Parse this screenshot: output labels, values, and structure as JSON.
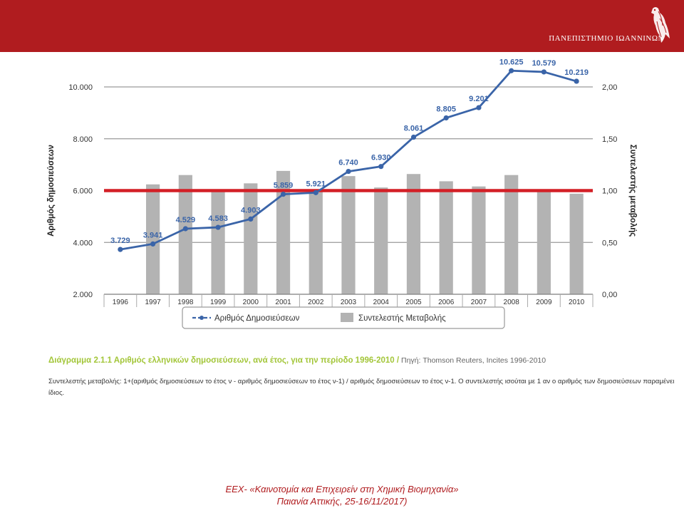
{
  "header": {
    "university": "ΠΑΝΕΠΙΣΤΗΜΙΟ ΙΩΑΝΝΙΝΩΝ",
    "logo_icon": "eagle-emblem-icon",
    "colors": {
      "band": "#b01c1f",
      "text": "#ffffff"
    }
  },
  "chart_data": {
    "type": "bar+line",
    "categories": [
      "1996",
      "1997",
      "1998",
      "1999",
      "2000",
      "2001",
      "2002",
      "2003",
      "2004",
      "2005",
      "2006",
      "2007",
      "2008",
      "2009",
      "2010"
    ],
    "series": [
      {
        "name": "Αριθμός Δημοσιεύσεων",
        "type": "line",
        "axis": "left",
        "color": "#3a64a8",
        "values": [
          3729,
          3941,
          4529,
          4583,
          4903,
          5859,
          5921,
          6740,
          6930,
          8061,
          8805,
          9201,
          10625,
          10579,
          10219
        ],
        "labels": [
          "3.729",
          "3.941",
          "4.529",
          "4.583",
          "4.903",
          "5.859",
          "5.921",
          "6.740",
          "6.930",
          "8.061",
          "8.805",
          "9.201",
          "10.625",
          "10.579",
          "10.219"
        ]
      },
      {
        "name": "Συντελεστής Μεταβολής",
        "type": "bar",
        "axis": "right",
        "color": "#b3b3b3",
        "values": [
          null,
          1.06,
          1.15,
          1.01,
          1.07,
          1.19,
          1.01,
          1.14,
          1.03,
          1.16,
          1.09,
          1.04,
          1.15,
          1.0,
          0.97
        ]
      }
    ],
    "reference_line": {
      "axis": "right",
      "value": 1.0,
      "color": "#d31f26"
    },
    "ylabel": "Αριθμός δημοσιεύσεων",
    "y2label": "Συντελεστής μεταβολής",
    "ylim": [
      2000,
      10000
    ],
    "y2lim": [
      0,
      2
    ],
    "yticks": [
      {
        "value": 2000,
        "label": "2.000"
      },
      {
        "value": 4000,
        "label": "4.000"
      },
      {
        "value": 6000,
        "label": "6.000"
      },
      {
        "value": 8000,
        "label": "8.000"
      },
      {
        "value": 10000,
        "label": "10.000"
      }
    ],
    "y2ticks": [
      {
        "value": 0,
        "label": "0,00"
      },
      {
        "value": 0.5,
        "label": "0,50"
      },
      {
        "value": 1.0,
        "label": "1,00"
      },
      {
        "value": 1.5,
        "label": "1,50"
      },
      {
        "value": 2.0,
        "label": "2,00"
      }
    ],
    "grid": true,
    "legend": "bottom"
  },
  "caption": {
    "title": "Διάγραμμα 2.1.1  Αριθμός ελληνικών δημοσιεύσεων, ανά έτος, για την περίοδο 1996-2010 /",
    "source": " Πηγή: Thomson Reuters, Incites 1996-2010",
    "colors": {
      "title": "#a3c639"
    },
    "note": "Συντελεστής μεταβολής: 1+(αριθμός δημοσιεύσεων το έτος ν - αριθμός δημοσιεύσεων το έτος ν-1) / αριθμός δημοσιεύσεων το έτος ν-1. Ο συντελεστής ισούται με 1 αν ο αριθμός των δημοσιεύσεων παραμένει ίδιος."
  },
  "footer": {
    "line1": "ΕΕΧ- «Καινοτομία και Επιχειρείν στη Χημική Βιομηχανία»",
    "line2": "Παιανία Αττικής, 25-16/11/2017)",
    "color": "#b01c1f"
  }
}
